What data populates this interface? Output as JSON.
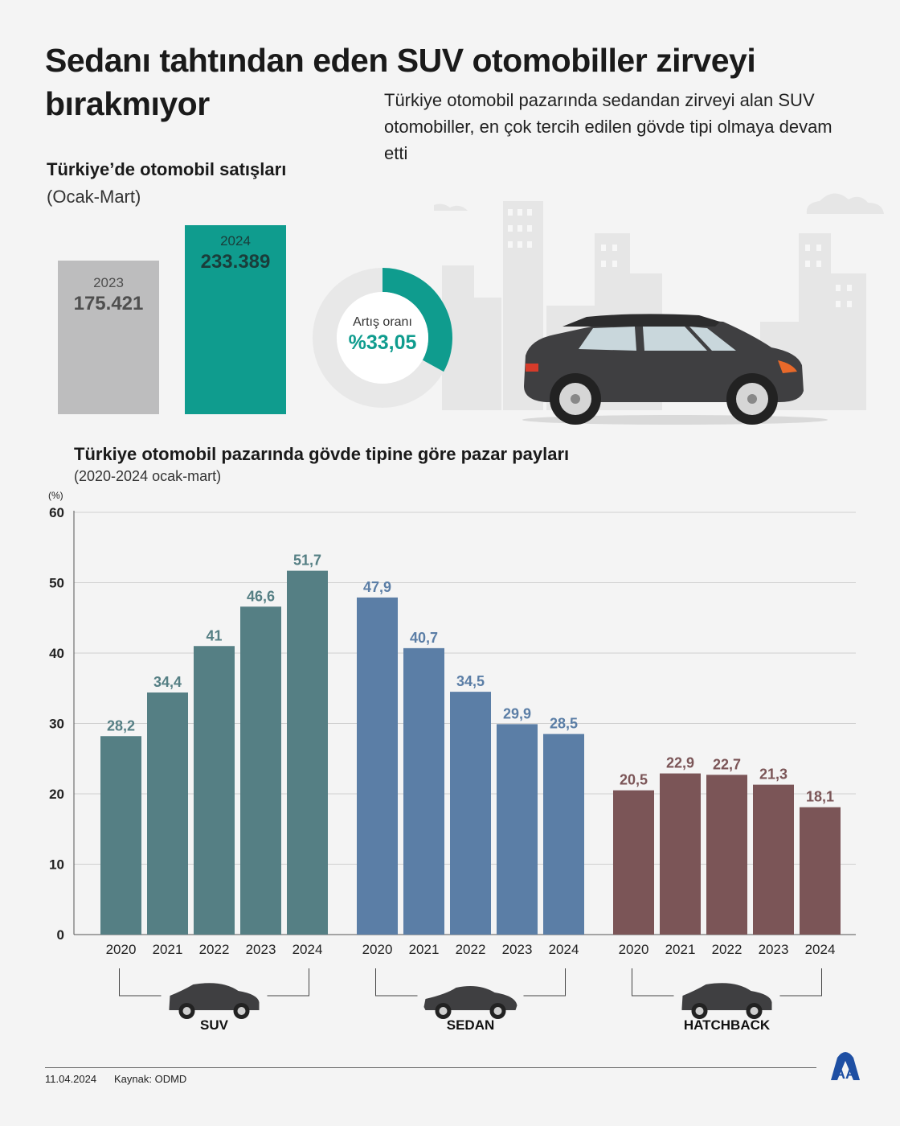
{
  "header": {
    "title": "Sedanı tahtından eden SUV otomobiller zirveyi bırakmıyor",
    "subtitle": "Türkiye otomobil pazarında sedandan zirveyi alan SUV otomobiller, en çok tercih edilen gövde tipi olmaya devam etti"
  },
  "sales": {
    "title": "Türkiye’de otomobil satışları",
    "period": "(Ocak-Mart)",
    "bars": [
      {
        "year": "2023",
        "value_label": "175.421",
        "value": 175421
      },
      {
        "year": "2024",
        "value_label": "233.389",
        "value": 233389
      }
    ],
    "increase_label": "Artış oranı",
    "increase_value": "%33,05",
    "increase_fraction": 0.3305
  },
  "colors": {
    "suv": "#557f84",
    "sedan": "#5b7ea6",
    "hatchback": "#7b5557",
    "teal": "#0f9c8e",
    "gray_bar": "#bdbdbe",
    "donut_bg": "#e8e8e8"
  },
  "chart_data": {
    "type": "bar",
    "title": "Türkiye otomobil pazarında gövde tipine göre pazar payları",
    "subtitle": "(2020-2024 ocak-mart)",
    "ylabel": "(%)",
    "ylim": [
      0,
      60
    ],
    "yticks": [
      0,
      10,
      20,
      30,
      40,
      50,
      60
    ],
    "groups": [
      {
        "name": "SUV",
        "color": "#557f84",
        "years": [
          "2020",
          "2021",
          "2022",
          "2023",
          "2024"
        ],
        "values": [
          28.2,
          34.4,
          41,
          46.6,
          51.7
        ],
        "labels": [
          "28,2",
          "34,4",
          "41",
          "46,6",
          "51,7"
        ]
      },
      {
        "name": "SEDAN",
        "color": "#5b7ea6",
        "years": [
          "2020",
          "2021",
          "2022",
          "2023",
          "2024"
        ],
        "values": [
          47.9,
          40.7,
          34.5,
          29.9,
          28.5
        ],
        "labels": [
          "47,9",
          "40,7",
          "34,5",
          "29,9",
          "28,5"
        ]
      },
      {
        "name": "HATCHBACK",
        "color": "#7b5557",
        "years": [
          "2020",
          "2021",
          "2022",
          "2023",
          "2024"
        ],
        "values": [
          20.5,
          22.9,
          22.7,
          21.3,
          18.1
        ],
        "labels": [
          "20,5",
          "22,9",
          "22,7",
          "21,3",
          "18,1"
        ]
      }
    ]
  },
  "footer": {
    "date": "11.04.2024",
    "source": "Kaynak: ODMD",
    "logo_text": "AA",
    "logo_icon": "aa-logo-icon"
  }
}
